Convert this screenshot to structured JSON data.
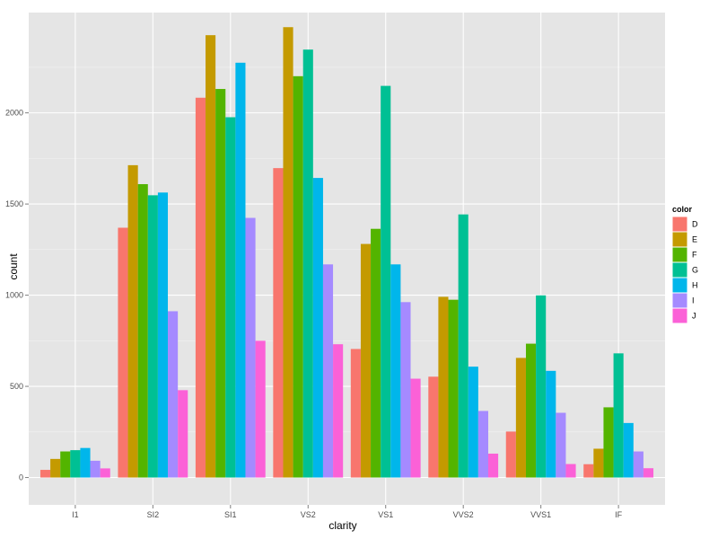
{
  "chart_data": {
    "type": "bar",
    "xlabel": "clarity",
    "ylabel": "count",
    "ylim": [
      -150,
      2550
    ],
    "y_ticks": [
      0,
      500,
      1000,
      1500,
      2000
    ],
    "categories": [
      "I1",
      "SI2",
      "SI1",
      "VS2",
      "VS1",
      "VVS2",
      "VVS1",
      "IF"
    ],
    "grid": true,
    "legend": {
      "title": "color",
      "position": "right"
    },
    "series": [
      {
        "name": "D",
        "color": "#F8766D",
        "values": [
          42,
          1370,
          2083,
          1697,
          705,
          553,
          252,
          73
        ]
      },
      {
        "name": "E",
        "color": "#C49A00",
        "values": [
          102,
          1713,
          2426,
          2470,
          1281,
          991,
          656,
          158
        ]
      },
      {
        "name": "F",
        "color": "#53B400",
        "values": [
          143,
          1609,
          2131,
          2201,
          1364,
          975,
          734,
          385
        ]
      },
      {
        "name": "G",
        "color": "#00C094",
        "values": [
          150,
          1548,
          1976,
          2347,
          2148,
          1443,
          999,
          681
        ]
      },
      {
        "name": "H",
        "color": "#00B6EB",
        "values": [
          162,
          1563,
          2275,
          1643,
          1169,
          608,
          585,
          299
        ]
      },
      {
        "name": "I",
        "color": "#A58AFF",
        "values": [
          92,
          912,
          1424,
          1169,
          962,
          365,
          355,
          143
        ]
      },
      {
        "name": "J",
        "color": "#FB61D7",
        "values": [
          50,
          479,
          750,
          731,
          542,
          131,
          74,
          51
        ]
      }
    ]
  }
}
